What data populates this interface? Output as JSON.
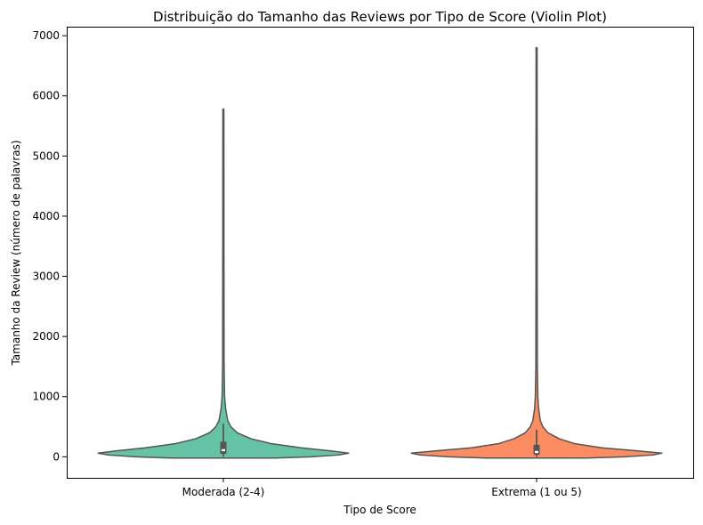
{
  "chart_data": {
    "type": "violin",
    "title": "Distribuição do Tamanho das Reviews por Tipo de Score (Violin Plot)",
    "xlabel": "Tipo de Score",
    "ylabel": "Tamanho da Review (número de palavras)",
    "ylim": [
      -350,
      7150
    ],
    "yticks": [
      0,
      1000,
      2000,
      3000,
      4000,
      5000,
      6000,
      7000
    ],
    "categories": [
      "Moderada (2-4)",
      "Extrema (1 ou 5)"
    ],
    "colors": [
      "#66c2a5",
      "#fc8d62"
    ],
    "grid": false,
    "series": [
      {
        "category": "Moderada (2-4)",
        "color": "#66c2a5",
        "min": 0,
        "q1": 50,
        "median": 110,
        "q3": 250,
        "max": 5780,
        "density_profile": [
          [
            -20,
            0.42
          ],
          [
            0,
            0.7
          ],
          [
            30,
            0.92
          ],
          [
            60,
            1.0
          ],
          [
            100,
            0.85
          ],
          [
            150,
            0.62
          ],
          [
            220,
            0.38
          ],
          [
            300,
            0.22
          ],
          [
            400,
            0.11
          ],
          [
            500,
            0.06
          ],
          [
            600,
            0.035
          ],
          [
            800,
            0.018
          ],
          [
            1000,
            0.01
          ],
          [
            1500,
            0.006
          ],
          [
            3000,
            0.005
          ],
          [
            5780,
            0.004
          ]
        ]
      },
      {
        "category": "Extrema (1 ou 5)",
        "color": "#fc8d62",
        "min": 0,
        "q1": 35,
        "median": 80,
        "q3": 200,
        "max": 6800,
        "density_profile": [
          [
            -20,
            0.4
          ],
          [
            0,
            0.7
          ],
          [
            30,
            0.93
          ],
          [
            60,
            1.0
          ],
          [
            100,
            0.8
          ],
          [
            150,
            0.52
          ],
          [
            220,
            0.3
          ],
          [
            300,
            0.18
          ],
          [
            400,
            0.09
          ],
          [
            500,
            0.05
          ],
          [
            600,
            0.03
          ],
          [
            800,
            0.016
          ],
          [
            1000,
            0.01
          ],
          [
            1500,
            0.006
          ],
          [
            3000,
            0.005
          ],
          [
            6800,
            0.004
          ]
        ]
      }
    ]
  }
}
